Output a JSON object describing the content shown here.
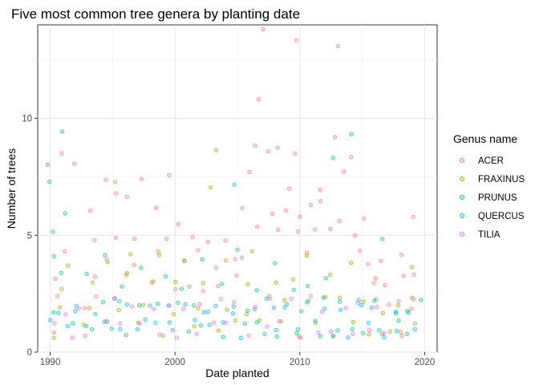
{
  "chart_data": {
    "type": "scatter",
    "title": "Five most common tree genera by planting date",
    "xlabel": "Date planted",
    "ylabel": "Number of trees",
    "xlim": [
      1989.0,
      2021.0
    ],
    "ylim": [
      0,
      14
    ],
    "x_ticks": [
      1990,
      2000,
      2010,
      2020
    ],
    "y_ticks": [
      0,
      5,
      10
    ],
    "grid": true,
    "jitter": true,
    "point_alpha": 0.3,
    "legend": {
      "title": "Genus name",
      "position": "right"
    },
    "series": [
      {
        "name": "ACER",
        "color": "#F8766D",
        "points": [
          [
            1990.2,
            1.0
          ],
          [
            1990.5,
            2.0
          ],
          [
            1990.3,
            3.0
          ],
          [
            1991.4,
            4.0
          ],
          [
            1991.8,
            7.8
          ],
          [
            1992.6,
            2.0
          ],
          [
            1993.0,
            6.3
          ],
          [
            1993.5,
            5.0
          ],
          [
            1993.8,
            3.0
          ],
          [
            1994.2,
            7.1
          ],
          [
            1994.8,
            4.0
          ],
          [
            1995.1,
            6.9
          ],
          [
            1995.4,
            5.0
          ],
          [
            1995.8,
            3.0
          ],
          [
            1996.2,
            6.7
          ],
          [
            1996.5,
            4.0
          ],
          [
            1997.0,
            5.0
          ],
          [
            1997.4,
            7.4
          ],
          [
            1997.8,
            3.0
          ],
          [
            1998.3,
            6.4
          ],
          [
            1998.7,
            4.0
          ],
          [
            1999.1,
            5.0
          ],
          [
            1999.5,
            7.3
          ],
          [
            1999.9,
            3.0
          ],
          [
            2000.2,
            5.8
          ],
          [
            2000.6,
            4.0
          ],
          [
            2001.0,
            3.0
          ],
          [
            2001.5,
            5.0
          ],
          [
            2001.9,
            4.0
          ],
          [
            2002.3,
            3.0
          ],
          [
            2002.8,
            5.0
          ],
          [
            2003.2,
            4.0
          ],
          [
            2003.6,
            3.0
          ],
          [
            2004.1,
            5.0
          ],
          [
            2004.6,
            4.0
          ],
          [
            2004.9,
            3.0
          ],
          [
            2005.3,
            6.0
          ],
          [
            2005.7,
            4.0
          ],
          [
            2006.0,
            7.7
          ],
          [
            2006.3,
            9.0
          ],
          [
            2006.6,
            5.0
          ],
          [
            2006.9,
            10.8
          ],
          [
            2007.2,
            8.5
          ],
          [
            2007.4,
            13.7
          ],
          [
            2007.7,
            6.0
          ],
          [
            2008.0,
            8.6
          ],
          [
            2008.4,
            5.0
          ],
          [
            2008.8,
            7.0
          ],
          [
            2009.1,
            6.0
          ],
          [
            2009.5,
            8.2
          ],
          [
            2009.8,
            5.0
          ],
          [
            2010.0,
            13.0
          ],
          [
            2010.3,
            6.0
          ],
          [
            2010.6,
            4.0
          ],
          [
            2011.0,
            6.0
          ],
          [
            2011.4,
            5.0
          ],
          [
            2011.7,
            7.0
          ],
          [
            2012.0,
            6.6
          ],
          [
            2012.3,
            5.0
          ],
          [
            2012.6,
            8.8
          ],
          [
            2013.0,
            12.8
          ],
          [
            2013.3,
            6.0
          ],
          [
            2013.7,
            7.7
          ],
          [
            2014.0,
            8.2
          ],
          [
            2014.3,
            5.0
          ],
          [
            2014.7,
            4.0
          ],
          [
            2015.0,
            6.0
          ],
          [
            2015.4,
            4.0
          ],
          [
            2015.8,
            3.0
          ],
          [
            2016.2,
            3.0
          ],
          [
            2016.6,
            4.0
          ],
          [
            2017.0,
            3.0
          ],
          [
            2017.4,
            2.0
          ],
          [
            2017.8,
            4.0
          ],
          [
            2018.3,
            3.0
          ],
          [
            2018.7,
            2.0
          ],
          [
            2019.1,
            5.8
          ],
          [
            2019.4,
            3.0
          ]
        ]
      },
      {
        "name": "FRAXINUS",
        "color": "#A3A500",
        "points": [
          [
            1990.4,
            1.0
          ],
          [
            1990.7,
            2.0
          ],
          [
            1991.2,
            3.0
          ],
          [
            1991.7,
            4.0
          ],
          [
            1992.5,
            1.0
          ],
          [
            1993.0,
            2.0
          ],
          [
            1993.6,
            3.0
          ],
          [
            1994.3,
            4.0
          ],
          [
            1994.8,
            1.0
          ],
          [
            1995.3,
            6.9
          ],
          [
            1995.7,
            2.0
          ],
          [
            1996.1,
            3.0
          ],
          [
            1996.6,
            4.0
          ],
          [
            1997.2,
            1.0
          ],
          [
            1997.6,
            2.0
          ],
          [
            1998.1,
            3.0
          ],
          [
            1998.6,
            4.0
          ],
          [
            1999.2,
            1.0
          ],
          [
            1999.7,
            2.0
          ],
          [
            2000.3,
            3.0
          ],
          [
            2000.8,
            4.0
          ],
          [
            2001.4,
            1.0
          ],
          [
            2001.8,
            2.0
          ],
          [
            2002.3,
            3.0
          ],
          [
            2002.8,
            7.2
          ],
          [
            2003.0,
            8.3
          ],
          [
            2003.4,
            1.0
          ],
          [
            2003.9,
            2.0
          ],
          [
            2004.4,
            4.0
          ],
          [
            2004.9,
            1.0
          ],
          [
            2005.4,
            2.0
          ],
          [
            2005.9,
            3.0
          ],
          [
            2006.4,
            4.0
          ],
          [
            2006.9,
            1.0
          ],
          [
            2007.4,
            2.0
          ],
          [
            2007.9,
            3.0
          ],
          [
            2008.4,
            1.0
          ],
          [
            2008.9,
            2.0
          ],
          [
            2009.4,
            3.0
          ],
          [
            2009.9,
            1.0
          ],
          [
            2010.4,
            2.0
          ],
          [
            2010.9,
            4.0
          ],
          [
            2011.4,
            1.0
          ],
          [
            2011.9,
            2.0
          ],
          [
            2012.4,
            3.0
          ],
          [
            2012.9,
            1.0
          ],
          [
            2013.4,
            2.0
          ],
          [
            2013.9,
            4.0
          ],
          [
            2014.4,
            1.0
          ],
          [
            2014.9,
            2.0
          ],
          [
            2015.4,
            1.0
          ],
          [
            2015.9,
            2.0
          ],
          [
            2016.4,
            1.0
          ],
          [
            2016.9,
            2.0
          ],
          [
            2017.4,
            1.0
          ],
          [
            2017.9,
            2.0
          ],
          [
            2018.4,
            1.0
          ],
          [
            2018.9,
            2.0
          ],
          [
            2019.2,
            4.0
          ],
          [
            2019.4,
            1.0
          ]
        ]
      },
      {
        "name": "PRUNUS",
        "color": "#00BF7D",
        "points": [
          [
            1989.8,
            7.9
          ],
          [
            1989.9,
            7.6
          ],
          [
            1990.0,
            5.2
          ],
          [
            1990.2,
            4.0
          ],
          [
            1990.4,
            2.0
          ],
          [
            1990.9,
            9.4
          ],
          [
            1991.0,
            6.0
          ],
          [
            1991.2,
            3.0
          ],
          [
            1991.6,
            1.0
          ],
          [
            1992.2,
            2.0
          ],
          [
            1992.8,
            3.0
          ],
          [
            1993.4,
            1.0
          ],
          [
            1993.9,
            2.0
          ],
          [
            1994.4,
            4.0
          ],
          [
            1994.9,
            1.0
          ],
          [
            1995.4,
            2.0
          ],
          [
            1995.9,
            3.0
          ],
          [
            1996.4,
            1.0
          ],
          [
            1996.9,
            2.0
          ],
          [
            1997.4,
            4.0
          ],
          [
            1997.9,
            1.0
          ],
          [
            1998.4,
            2.0
          ],
          [
            1998.9,
            3.0
          ],
          [
            1999.4,
            1.0
          ],
          [
            1999.9,
            2.0
          ],
          [
            2000.4,
            3.0
          ],
          [
            2000.9,
            1.0
          ],
          [
            2001.4,
            2.0
          ],
          [
            2001.9,
            4.0
          ],
          [
            2002.4,
            1.0
          ],
          [
            2002.9,
            2.0
          ],
          [
            2003.4,
            3.0
          ],
          [
            2003.9,
            1.0
          ],
          [
            2004.4,
            2.0
          ],
          [
            2004.9,
            4.0
          ],
          [
            2005.4,
            1.0
          ],
          [
            2005.9,
            2.0
          ],
          [
            2006.4,
            3.0
          ],
          [
            2006.9,
            1.0
          ],
          [
            2007.4,
            2.0
          ],
          [
            2007.9,
            4.0
          ],
          [
            2008.4,
            1.0
          ],
          [
            2008.9,
            2.0
          ],
          [
            2009.4,
            3.0
          ],
          [
            2009.9,
            1.0
          ],
          [
            2010.4,
            2.0
          ],
          [
            2010.9,
            3.0
          ],
          [
            2011.4,
            1.0
          ],
          [
            2011.9,
            2.0
          ],
          [
            2012.4,
            3.0
          ],
          [
            2012.9,
            1.0
          ],
          [
            2013.0,
            8.6
          ],
          [
            2013.4,
            2.0
          ],
          [
            2013.9,
            9.2
          ],
          [
            2014.4,
            1.0
          ],
          [
            2014.9,
            2.0
          ],
          [
            2015.4,
            1.0
          ],
          [
            2015.9,
            2.0
          ],
          [
            2016.4,
            1.0
          ],
          [
            2016.9,
            5.2
          ],
          [
            2017.4,
            2.0
          ],
          [
            2017.9,
            1.0
          ],
          [
            2018.4,
            2.0
          ],
          [
            2018.9,
            1.0
          ],
          [
            2019.4,
            2.0
          ]
        ]
      },
      {
        "name": "QUERCUS",
        "color": "#00B0F6",
        "points": [
          [
            1990.1,
            1.0
          ],
          [
            1990.8,
            2.0
          ],
          [
            1991.5,
            1.0
          ],
          [
            1992.1,
            2.0
          ],
          [
            1992.9,
            1.0
          ],
          [
            1993.6,
            2.0
          ],
          [
            1994.3,
            1.0
          ],
          [
            1995.0,
            2.0
          ],
          [
            1995.7,
            1.0
          ],
          [
            1996.4,
            2.0
          ],
          [
            1997.1,
            1.0
          ],
          [
            1997.8,
            2.0
          ],
          [
            1998.5,
            1.0
          ],
          [
            1999.2,
            2.0
          ],
          [
            1999.9,
            1.0
          ],
          [
            2000.6,
            2.0
          ],
          [
            2001.3,
            1.0
          ],
          [
            2002.0,
            2.0
          ],
          [
            2002.7,
            1.0
          ],
          [
            2003.4,
            2.0
          ],
          [
            2004.1,
            1.0
          ],
          [
            2004.8,
            2.0
          ],
          [
            2005.0,
            6.9
          ],
          [
            2005.5,
            1.0
          ],
          [
            2006.2,
            2.0
          ],
          [
            2006.9,
            1.0
          ],
          [
            2007.6,
            2.0
          ],
          [
            2008.3,
            1.0
          ],
          [
            2009.0,
            2.0
          ],
          [
            2009.7,
            1.0
          ],
          [
            2010.4,
            2.0
          ],
          [
            2011.1,
            1.0
          ],
          [
            2011.8,
            2.0
          ],
          [
            2012.5,
            1.0
          ],
          [
            2013.2,
            2.0
          ],
          [
            2013.9,
            1.0
          ],
          [
            2014.6,
            2.0
          ],
          [
            2015.3,
            1.0
          ],
          [
            2016.0,
            2.0
          ],
          [
            2016.7,
            1.0
          ],
          [
            2017.4,
            2.0
          ],
          [
            2018.1,
            1.0
          ],
          [
            2018.8,
            2.0
          ],
          [
            2019.3,
            1.0
          ]
        ]
      },
      {
        "name": "TILIA",
        "color": "#E76BF3",
        "points": [
          [
            1990.3,
            1.0
          ],
          [
            1990.9,
            8.9
          ],
          [
            1991.0,
            2.0
          ],
          [
            1991.7,
            1.0
          ],
          [
            1992.4,
            2.0
          ],
          [
            1993.1,
            1.0
          ],
          [
            1993.8,
            2.0
          ],
          [
            1994.5,
            1.0
          ],
          [
            1995.2,
            2.0
          ],
          [
            1995.9,
            1.0
          ],
          [
            1996.6,
            2.0
          ],
          [
            1997.3,
            1.0
          ],
          [
            1998.0,
            2.0
          ],
          [
            1998.7,
            1.0
          ],
          [
            1999.4,
            2.0
          ],
          [
            2000.1,
            1.0
          ],
          [
            2000.8,
            2.0
          ],
          [
            2001.5,
            1.0
          ],
          [
            2002.2,
            2.0
          ],
          [
            2002.9,
            1.0
          ],
          [
            2003.6,
            2.0
          ],
          [
            2004.3,
            1.0
          ],
          [
            2005.0,
            2.0
          ],
          [
            2005.7,
            1.0
          ],
          [
            2006.4,
            2.0
          ],
          [
            2007.1,
            1.0
          ],
          [
            2007.8,
            2.0
          ],
          [
            2008.5,
            1.0
          ],
          [
            2009.2,
            2.0
          ],
          [
            2009.9,
            1.0
          ],
          [
            2010.6,
            2.0
          ],
          [
            2011.3,
            1.0
          ],
          [
            2012.0,
            2.0
          ],
          [
            2012.7,
            1.0
          ],
          [
            2013.4,
            2.0
          ],
          [
            2014.1,
            1.0
          ],
          [
            2014.8,
            2.0
          ],
          [
            2015.5,
            1.0
          ],
          [
            2016.2,
            2.0
          ],
          [
            2016.9,
            1.0
          ],
          [
            2017.6,
            2.0
          ],
          [
            2018.3,
            1.0
          ],
          [
            2019.0,
            2.0
          ]
        ]
      }
    ]
  }
}
